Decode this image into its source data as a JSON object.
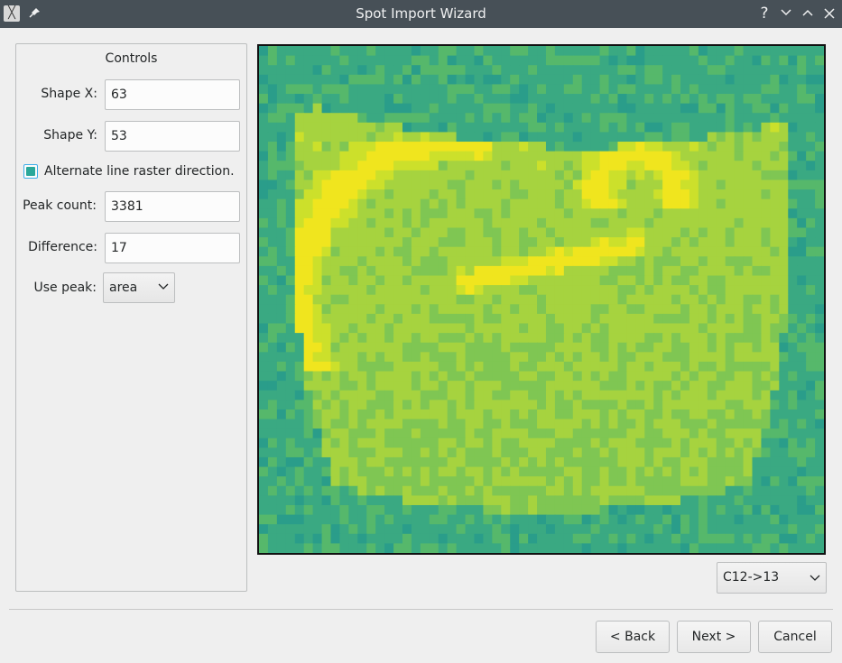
{
  "window": {
    "title": "Spot Import Wizard",
    "app_icon_glyph": "╳",
    "buttons": {
      "help": "?"
    }
  },
  "controls": {
    "title": "Controls",
    "shape_x": {
      "label": "Shape X:",
      "value": "63"
    },
    "shape_y": {
      "label": "Shape Y:",
      "value": "53"
    },
    "alternate_raster": {
      "label": "Alternate line raster direction.",
      "checked": true
    },
    "peak_count": {
      "label": "Peak count:",
      "value": "3381"
    },
    "difference": {
      "label": "Difference:",
      "value": "17"
    },
    "use_peak": {
      "label": "Use peak:",
      "value": "area"
    }
  },
  "heatmap": {
    "colormap": [
      "#2a9d8a",
      "#3aa982",
      "#56b86b",
      "#7fc653",
      "#a6d33f",
      "#cce02b",
      "#f0e51e"
    ],
    "grid_cols": 63,
    "grid_rows": 53
  },
  "channel_select": {
    "value": "C12->13"
  },
  "footer": {
    "back_label": "< Back",
    "next_label": "Next >",
    "cancel_label": "Cancel"
  }
}
